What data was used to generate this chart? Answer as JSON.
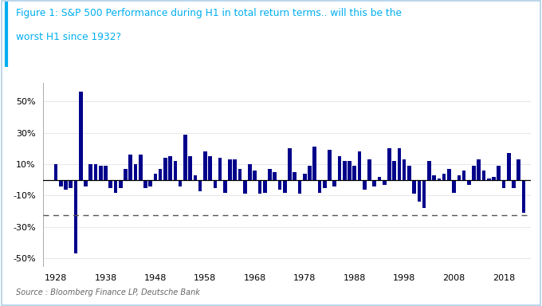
{
  "title_line1": "Figure 1: S&P 500 Performance during H1 in total return terms.. will this be the",
  "title_line2": "worst H1 since 1932?",
  "source": "Source : Bloomberg Finance LP, Deutsche Bank",
  "bar_color": "#00008B",
  "title_color": "#00AEEF",
  "source_color": "#666666",
  "background_color": "#FFFFFF",
  "dashed_line_value": -0.225,
  "border_color": "#B0D0E8",
  "accent_color": "#00AEEF",
  "years": [
    1928,
    1929,
    1930,
    1931,
    1932,
    1933,
    1934,
    1935,
    1936,
    1937,
    1938,
    1939,
    1940,
    1941,
    1942,
    1943,
    1944,
    1945,
    1946,
    1947,
    1948,
    1949,
    1950,
    1951,
    1952,
    1953,
    1954,
    1955,
    1956,
    1957,
    1958,
    1959,
    1960,
    1961,
    1962,
    1963,
    1964,
    1965,
    1966,
    1967,
    1968,
    1969,
    1970,
    1971,
    1972,
    1973,
    1974,
    1975,
    1976,
    1977,
    1978,
    1979,
    1980,
    1981,
    1982,
    1983,
    1984,
    1985,
    1986,
    1987,
    1988,
    1989,
    1990,
    1991,
    1992,
    1993,
    1994,
    1995,
    1996,
    1997,
    1998,
    1999,
    2000,
    2001,
    2002,
    2003,
    2004,
    2005,
    2006,
    2007,
    2008,
    2009,
    2010,
    2011,
    2012,
    2013,
    2014,
    2015,
    2016,
    2017,
    2018,
    2019,
    2020,
    2021,
    2022
  ],
  "values": [
    0.1,
    -0.04,
    -0.06,
    -0.05,
    -0.47,
    0.56,
    -0.04,
    0.1,
    0.1,
    0.09,
    0.09,
    -0.05,
    -0.08,
    -0.05,
    0.07,
    0.16,
    0.1,
    0.16,
    -0.05,
    -0.04,
    0.04,
    0.07,
    0.14,
    0.15,
    0.12,
    -0.04,
    0.29,
    0.15,
    0.03,
    -0.07,
    0.18,
    0.15,
    -0.05,
    0.14,
    -0.08,
    0.13,
    0.13,
    0.07,
    -0.09,
    0.1,
    0.06,
    -0.09,
    -0.08,
    0.07,
    0.05,
    -0.06,
    -0.08,
    0.2,
    0.05,
    -0.09,
    0.04,
    0.09,
    0.21,
    -0.08,
    -0.05,
    0.19,
    -0.04,
    0.15,
    0.12,
    0.12,
    0.09,
    0.18,
    -0.06,
    0.13,
    -0.04,
    0.02,
    -0.03,
    0.2,
    0.12,
    0.2,
    0.13,
    0.09,
    -0.09,
    -0.14,
    -0.18,
    0.12,
    0.03,
    0.01,
    0.04,
    0.07,
    -0.08,
    0.03,
    0.06,
    -0.03,
    0.09,
    0.13,
    0.06,
    0.01,
    0.02,
    0.09,
    -0.05,
    0.17,
    -0.05,
    0.13,
    -0.21
  ],
  "ylim": [
    -0.55,
    0.62
  ],
  "yticks": [
    -0.5,
    -0.3,
    -0.1,
    0.1,
    0.3,
    0.5
  ],
  "xlim": [
    1925.5,
    2023.5
  ],
  "xtick_positions": [
    1928,
    1938,
    1948,
    1958,
    1968,
    1978,
    1988,
    1998,
    2008,
    2018
  ],
  "xtick_labels": [
    "1928",
    "1938",
    "1948",
    "1958",
    "1968",
    "1978",
    "1988",
    "1998",
    "2008",
    "2018"
  ]
}
